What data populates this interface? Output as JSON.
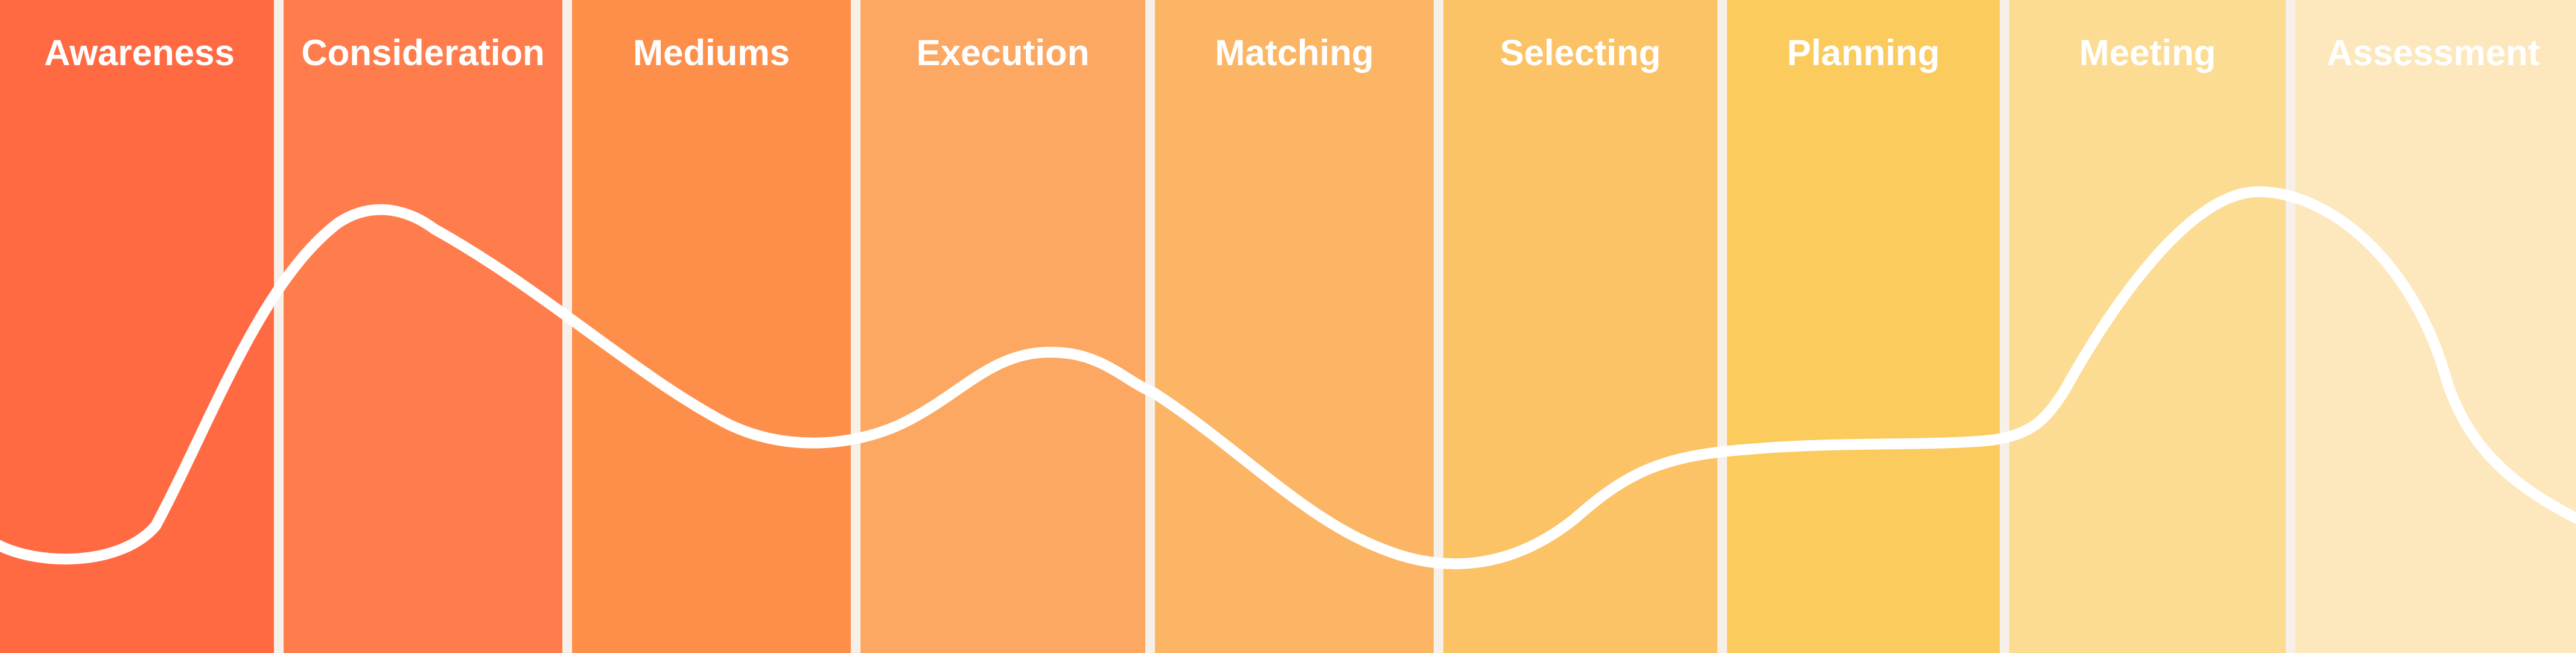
{
  "stages": [
    {
      "label": "Awareness",
      "color": "#ff6a43"
    },
    {
      "label": "Consideration",
      "color": "#ff7c4c"
    },
    {
      "label": "Mediums",
      "color": "#fe8f4b"
    },
    {
      "label": "Execution",
      "color": "#fca762"
    },
    {
      "label": "Matching",
      "color": "#fcb564"
    },
    {
      "label": "Selecting",
      "color": "#fcc266"
    },
    {
      "label": "Planning",
      "color": "#fbcb5d"
    },
    {
      "label": "Meeting",
      "color": "#fcdc93"
    },
    {
      "label": "Assessment",
      "color": "#fde7bd"
    }
  ],
  "colors": {
    "curve": "#ffffff",
    "divider": "#f6f0e8"
  }
}
